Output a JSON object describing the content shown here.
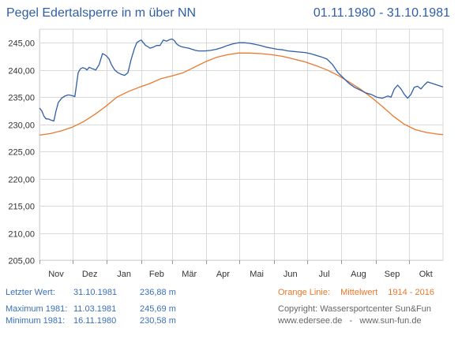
{
  "header": {
    "title": "Pegel Edertalsperre in m über NN",
    "period": "01.11.1980 - 31.10.1981"
  },
  "info": {
    "last": {
      "label": "Letzter Wert:",
      "date": "31.10.1981",
      "value": "236,88 m"
    },
    "max": {
      "label": "Maximum 1981:",
      "date": "11.03.1981",
      "value": "245,69 m"
    },
    "min": {
      "label": "Minimum  1981:",
      "date": "16.11.1980",
      "value": "230,58 m"
    }
  },
  "orange_note": {
    "label": "Orange Linie:",
    "text": "Mittelwert",
    "range": "1914 - 2016"
  },
  "credits": {
    "copyright": "Copyright: Wassersportcenter Sun&Fun",
    "links": "www.edersee.de   -   www.sun-fun.de"
  },
  "colors": {
    "level": "#2f5ea8",
    "mean": "#e8782c",
    "grid": "#d9d9d9"
  },
  "chart_data": {
    "type": "line",
    "xlabel": "",
    "ylabel": "",
    "ylim": [
      205,
      247.5
    ],
    "yticks": [
      205,
      210,
      215,
      220,
      225,
      230,
      235,
      240,
      245
    ],
    "ytick_labels": [
      "205,00",
      "210,00",
      "215,00",
      "220,00",
      "225,00",
      "230,00",
      "235,00",
      "240,00",
      "245,00"
    ],
    "xlim": [
      0,
      365
    ],
    "months": [
      "Nov",
      "Dez",
      "Jan",
      "Feb",
      "Mär",
      "Apr",
      "Mai",
      "Jun",
      "Jul",
      "Aug",
      "Sep",
      "Okt"
    ],
    "month_starts": [
      0,
      30,
      61,
      92,
      120,
      151,
      181,
      212,
      242,
      273,
      304,
      334
    ],
    "grid": true,
    "legend": "none",
    "series": [
      {
        "name": "Pegel",
        "color": "#2f5ea8",
        "x": [
          0,
          2,
          4,
          6,
          8,
          10,
          13,
          15,
          17,
          20,
          23,
          26,
          29,
          32,
          35,
          37,
          39,
          41,
          43,
          45,
          48,
          51,
          54,
          57,
          59,
          61,
          63,
          65,
          68,
          71,
          74,
          77,
          80,
          83,
          86,
          88,
          90,
          92,
          94,
          96,
          98,
          100,
          103,
          106,
          109,
          112,
          115,
          118,
          120,
          122,
          124,
          126,
          128,
          130,
          132,
          135,
          138,
          141,
          144,
          147,
          150,
          155,
          160,
          165,
          170,
          175,
          180,
          185,
          190,
          195,
          200,
          205,
          210,
          215,
          220,
          225,
          230,
          235,
          240,
          245,
          250,
          255,
          260,
          265,
          270,
          275,
          280,
          285,
          290,
          295,
          300,
          305,
          310,
          315,
          318,
          321,
          324,
          327,
          330,
          333,
          336,
          339,
          342,
          345,
          348,
          351,
          354,
          357,
          360,
          363,
          365
        ],
        "y": [
          233.0,
          232.5,
          231.5,
          231.0,
          231.0,
          230.8,
          230.6,
          232.5,
          234.0,
          234.8,
          235.2,
          235.4,
          235.3,
          235.1,
          239.5,
          240.2,
          240.4,
          240.3,
          240.0,
          240.5,
          240.2,
          240.0,
          241.0,
          243.0,
          242.8,
          242.5,
          242.0,
          241.0,
          240.0,
          239.5,
          239.2,
          239.0,
          239.5,
          242.0,
          244.0,
          245.0,
          245.3,
          245.5,
          245.0,
          244.5,
          244.3,
          244.0,
          244.2,
          244.5,
          244.5,
          245.5,
          245.3,
          245.6,
          245.69,
          245.4,
          244.8,
          244.5,
          244.3,
          244.2,
          244.1,
          244.0,
          243.8,
          243.6,
          243.5,
          243.5,
          243.5,
          243.6,
          243.8,
          244.1,
          244.5,
          244.8,
          245.0,
          245.0,
          244.9,
          244.7,
          244.5,
          244.2,
          244.0,
          243.8,
          243.7,
          243.5,
          243.4,
          243.3,
          243.2,
          243.0,
          242.7,
          242.4,
          242.0,
          241.0,
          239.5,
          238.5,
          237.5,
          236.8,
          236.3,
          235.8,
          235.5,
          235.0,
          234.8,
          235.2,
          235.0,
          236.5,
          237.2,
          236.5,
          235.5,
          234.8,
          235.5,
          236.8,
          237.0,
          236.5,
          237.2,
          237.8,
          237.6,
          237.4,
          237.2,
          237.0,
          236.88
        ]
      },
      {
        "name": "Mittelwert",
        "color": "#e8782c",
        "x": [
          0,
          10,
          20,
          30,
          40,
          50,
          60,
          70,
          80,
          90,
          100,
          110,
          120,
          130,
          140,
          150,
          160,
          170,
          180,
          190,
          200,
          210,
          220,
          230,
          240,
          250,
          260,
          270,
          280,
          290,
          300,
          310,
          320,
          330,
          340,
          350,
          360,
          365
        ],
        "y": [
          228.0,
          228.3,
          228.8,
          229.5,
          230.5,
          231.8,
          233.3,
          235.0,
          236.0,
          236.8,
          237.5,
          238.4,
          238.9,
          239.5,
          240.5,
          241.5,
          242.3,
          242.8,
          243.1,
          243.1,
          243.0,
          242.8,
          242.5,
          242.0,
          241.5,
          240.8,
          240.0,
          239.0,
          237.8,
          236.5,
          235.0,
          233.3,
          231.5,
          230.0,
          229.0,
          228.5,
          228.2,
          228.1
        ]
      }
    ]
  }
}
